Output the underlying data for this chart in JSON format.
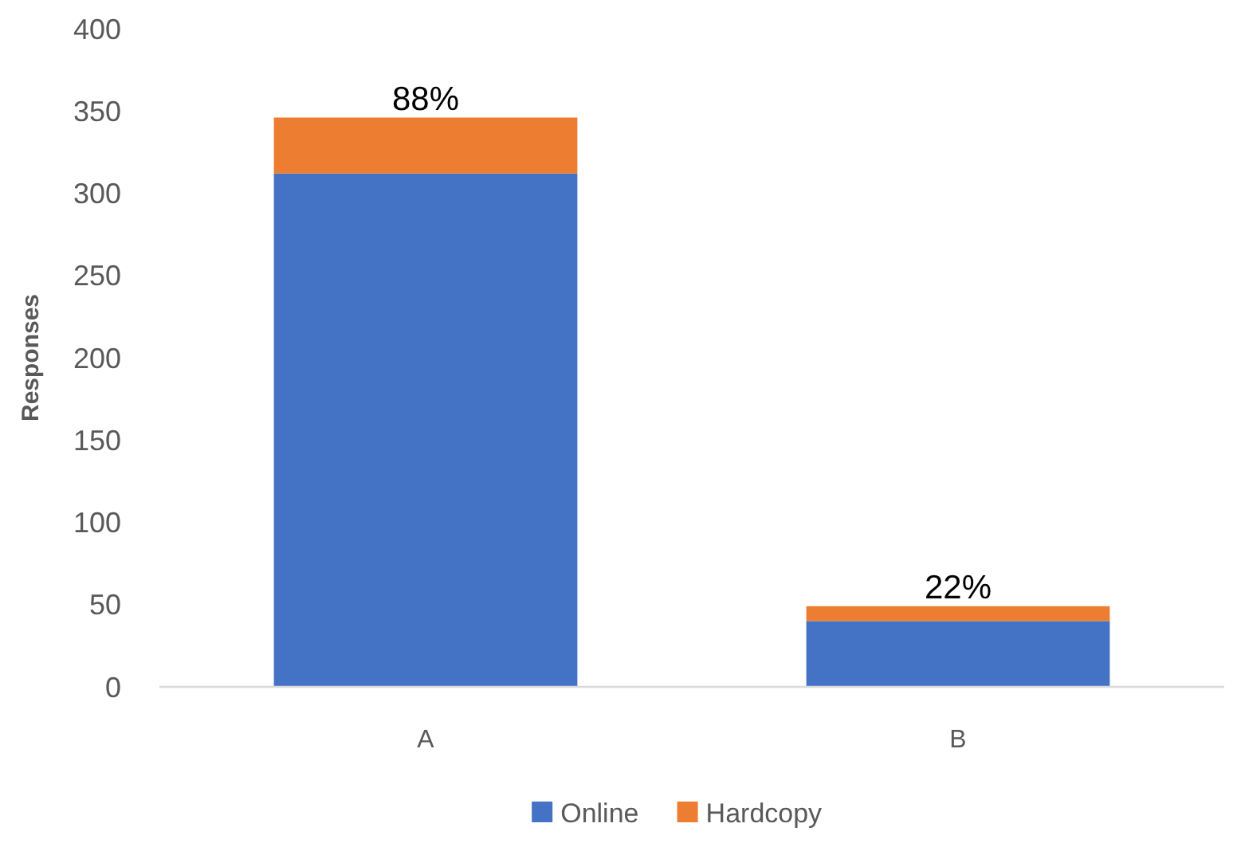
{
  "chart_data": {
    "type": "bar",
    "ylabel": "Responses",
    "categories": [
      "A",
      "B"
    ],
    "stacked": true,
    "series": [
      {
        "name": "Online",
        "color": "#4472c4",
        "values": [
          312,
          40
        ]
      },
      {
        "name": "Hardcopy",
        "color": "#ed7d31",
        "values": [
          34,
          9
        ]
      }
    ],
    "annotations": [
      {
        "text": "88%",
        "x": "A",
        "y": 346
      },
      {
        "text": "22%",
        "x": "B",
        "y": 49
      }
    ],
    "ylim": [
      0,
      400
    ],
    "yticks": [
      0,
      50,
      100,
      150,
      200,
      250,
      300,
      350,
      400
    ],
    "grid": false,
    "legend": "bottom"
  }
}
